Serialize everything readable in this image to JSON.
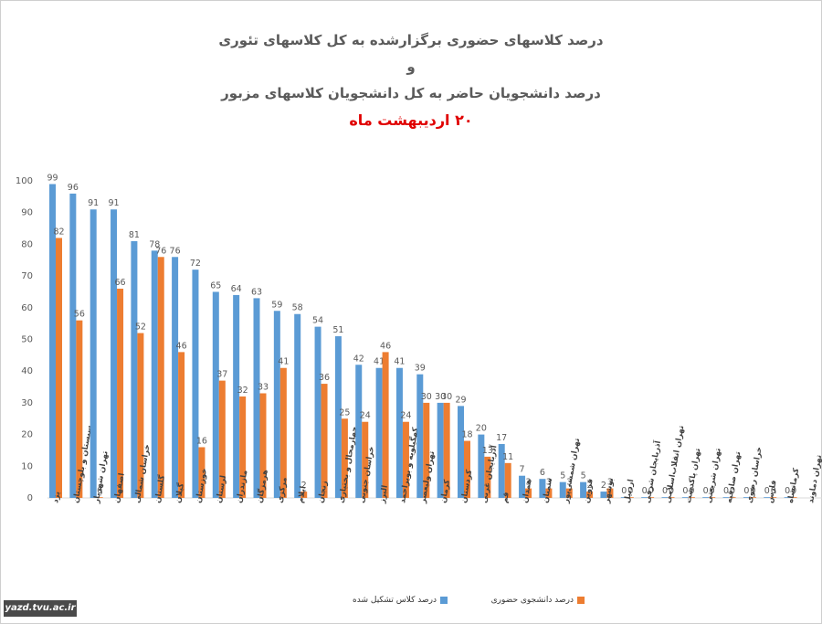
{
  "titles": {
    "line1": "درصد کلاسهای حضوری برگزارشده به کل کلاسهای تئوری",
    "line2": "و",
    "line3": "درصد دانشجویان حاضر به کل دانشجویان کلاسهای مزبور",
    "line4": "۲۰ اردیبهشت ماه"
  },
  "site_tag": "yazd.tvu.ac.ir",
  "colors": {
    "classes": "#5b9bd5",
    "students": "#ed7d31",
    "text": "#595959",
    "axis": "#d9d9d9"
  },
  "legend": {
    "position": "bottom"
  },
  "chart_data": {
    "type": "bar",
    "ylim": [
      0,
      100
    ],
    "yticks": [
      0,
      10,
      20,
      30,
      40,
      50,
      60,
      70,
      80,
      90,
      100
    ],
    "grid": false,
    "categories": [
      "یزد",
      "سیستان و بلوچستان",
      "تهران شهریار",
      "اصفهان",
      "خراسان شمالی",
      "گلستان",
      "گیلان",
      "خوزستان",
      "لرستان",
      "مازندران",
      "هرمزگان",
      "مرکزی",
      "ایلام",
      "زنجان",
      "چهارمحال و بختیاری",
      "خراسان جنوبی",
      "البرز",
      "کهگیلویه و بویراحمد",
      "تهران ولیعصر",
      "کرمان",
      "کردستان",
      "آذربایجان غربی",
      "قم",
      "همدان",
      "سمنان",
      "تهران شمسی‌پور",
      "قزوین",
      "بوشهر",
      "اردبیل",
      "آذربایجان شرقی",
      "تهران انقلاب‌اسلامی",
      "تهران پاکدشت",
      "تهران شریعتی",
      "تهران صادقیه",
      "خراسان رضوی",
      "فارس",
      "کرمانشاه",
      "تهران دماوند"
    ],
    "series": [
      {
        "name": "درصد کلاس تشکیل شده",
        "color": "#5b9bd5",
        "values": [
          99,
          96,
          91,
          91,
          81,
          78,
          76,
          72,
          65,
          64,
          63,
          59,
          58,
          54,
          51,
          42,
          41,
          41,
          39,
          30,
          29,
          20,
          17,
          7,
          6,
          5,
          5,
          2,
          0,
          0,
          0,
          0,
          0,
          0,
          0,
          0,
          0,
          null
        ]
      },
      {
        "name": "درصد دانشجوی حضوری",
        "color": "#ed7d31",
        "values": [
          82,
          56,
          0,
          66,
          52,
          76,
          46,
          16,
          37,
          32,
          33,
          41,
          2,
          36,
          25,
          24,
          46,
          24,
          30,
          30,
          18,
          13,
          11,
          3,
          3,
          3,
          2,
          3,
          0,
          0,
          0,
          0,
          0,
          0,
          0,
          0,
          0,
          null
        ]
      }
    ]
  }
}
